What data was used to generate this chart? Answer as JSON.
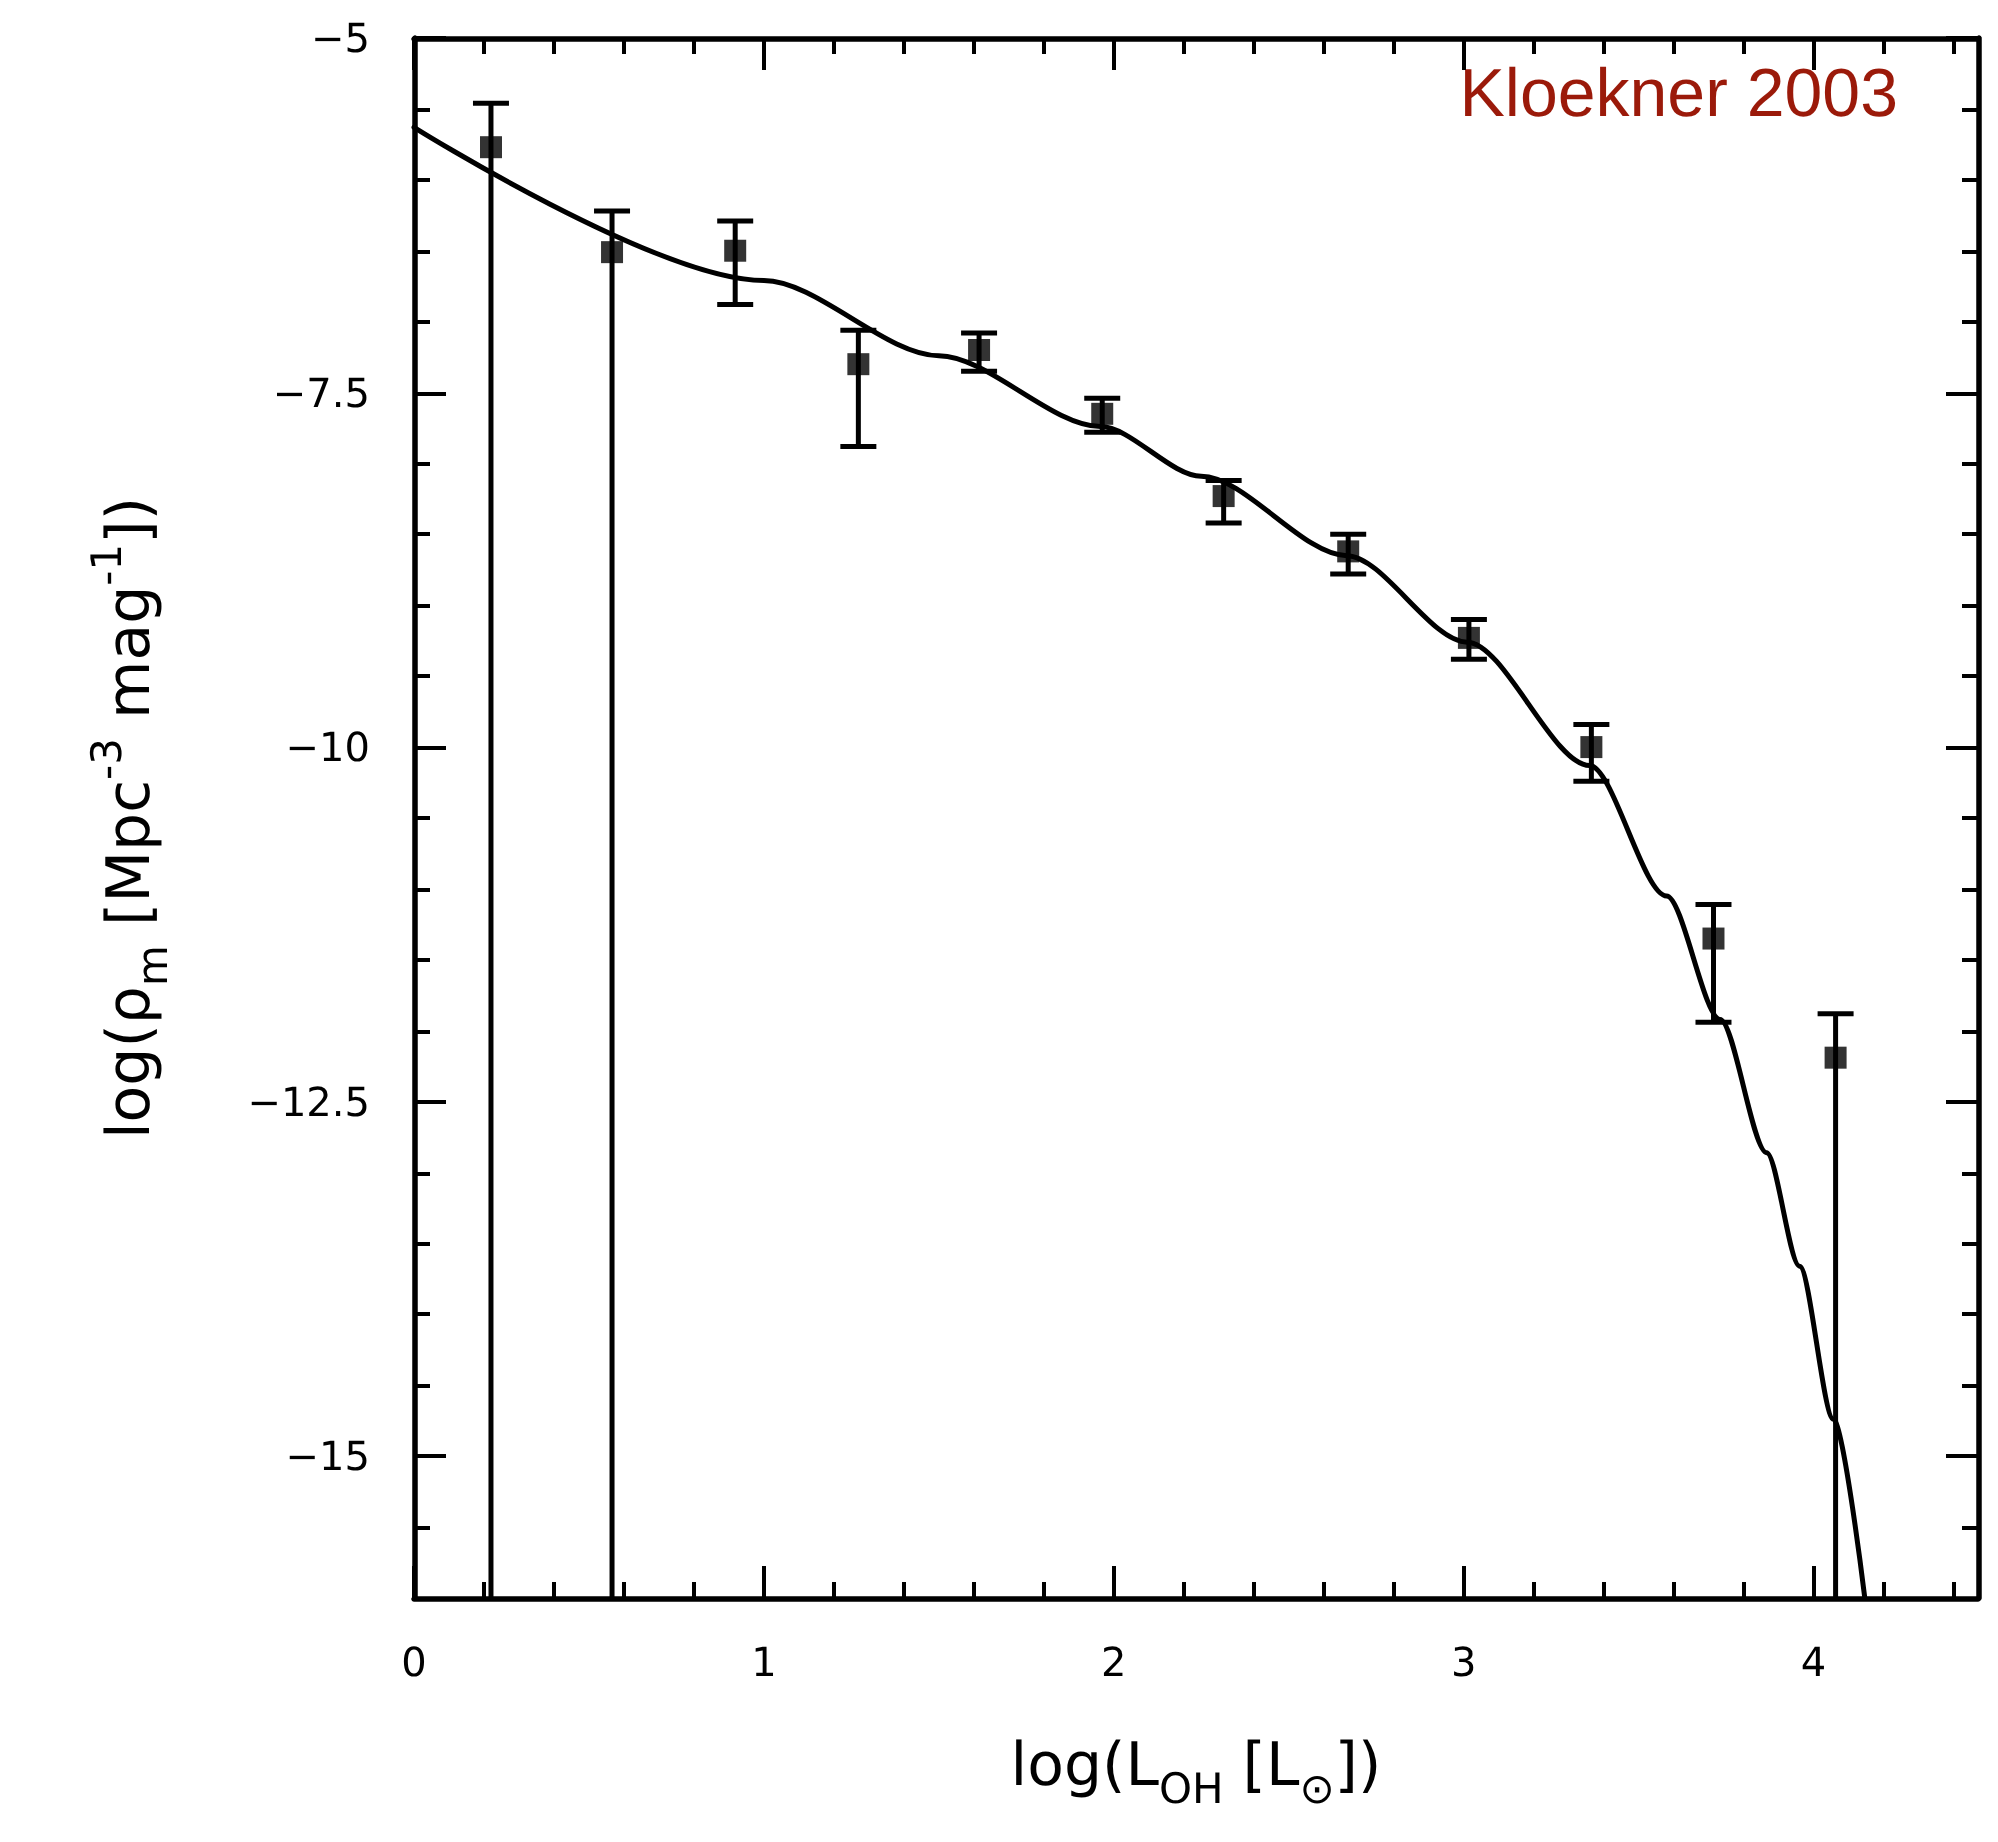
{
  "chart_data": {
    "type": "scatter",
    "xlabel": "log(L$_{OH}$ [L$_{⊙}$])",
    "ylabel": "log(ρ$_{m}$ [Mpc$^{-3}$ mag$^{-1}$])",
    "annotations": [
      "Kloekner 2003"
    ],
    "xlim": [
      0,
      4.47
    ],
    "ylim": [
      -16,
      -5
    ],
    "xticks": [
      0,
      {
        "value": 0.2,
        "label": null
      },
      {
        "value": 0.4,
        "label": null
      },
      {
        "value": 0.6,
        "label": null
      },
      {
        "value": 0.8,
        "label": null
      },
      1,
      {
        "value": 1.2,
        "label": null
      },
      {
        "value": 1.4,
        "label": null
      },
      {
        "value": 1.6,
        "label": null
      },
      {
        "value": 1.8,
        "label": null
      },
      2,
      {
        "value": 2.2,
        "label": null
      },
      {
        "value": 2.4,
        "label": null
      },
      {
        "value": 2.6,
        "label": null
      },
      {
        "value": 2.8,
        "label": null
      },
      3,
      {
        "value": 3.2,
        "label": null
      },
      {
        "value": 3.4,
        "label": null
      },
      {
        "value": 3.6,
        "label": null
      },
      {
        "value": 3.8,
        "label": null
      },
      4,
      {
        "value": 4.2,
        "label": null
      },
      {
        "value": 4.4,
        "label": null
      }
    ],
    "yticks": [
      -5,
      {
        "value": -5.5,
        "label": null
      },
      {
        "value": -6,
        "label": null
      },
      {
        "value": -6.5,
        "label": null
      },
      {
        "value": -7,
        "label": null
      },
      -7.5,
      {
        "value": -8,
        "label": null
      },
      {
        "value": -8.5,
        "label": null
      },
      {
        "value": -9,
        "label": null
      },
      {
        "value": -9.5,
        "label": null
      },
      -10,
      {
        "value": -10.5,
        "label": null
      },
      {
        "value": -11,
        "label": null
      },
      {
        "value": -11.5,
        "label": null
      },
      {
        "value": -12,
        "label": null
      },
      -12.5,
      {
        "value": -13,
        "label": null
      },
      {
        "value": -13.5,
        "label": null
      },
      {
        "value": -14,
        "label": null
      },
      {
        "value": -14.5,
        "label": null
      },
      -15,
      {
        "value": -15.5,
        "label": null
      }
    ],
    "marker": "square",
    "series": [
      {
        "color": "#000000",
        "x": [
          0.22,
          0.566,
          0.918,
          1.27,
          1.615,
          1.967,
          2.314,
          2.67,
          3.015,
          3.365,
          3.714,
          4.063
        ],
        "values": [
          -5.77,
          -6.51,
          -6.5,
          -7.3,
          -7.2,
          -7.65,
          -8.23,
          -8.62,
          -9.23,
          -10.0,
          -11.35,
          -12.19
        ],
        "errors": [
          [
            -16,
            -5.46
          ],
          [
            -16,
            -6.22
          ],
          [
            -6.88,
            -6.29
          ],
          [
            -7.88,
            -7.06
          ],
          [
            -7.35,
            -7.08
          ],
          [
            -7.78,
            -7.54
          ],
          [
            -8.42,
            -8.12
          ],
          [
            -8.78,
            -8.5
          ],
          [
            -9.38,
            -9.1
          ],
          [
            -10.24,
            -9.84
          ],
          [
            -11.94,
            -11.11
          ],
          [
            -16,
            -11.88
          ]
        ]
      },
      {
        "type": "line",
        "color": "#000000",
        "marker": "none",
        "line_style": "solid",
        "x": [
          0,
          1,
          1.5,
          1.962,
          2.25,
          2.666,
          3.01,
          3.36,
          3.58,
          3.733,
          3.866,
          3.96,
          4.057,
          4.146
        ],
        "values": [
          -5.63,
          -6.71,
          -7.24,
          -7.74,
          -8.09,
          -8.65,
          -9.26,
          -10.13,
          -11.05,
          -11.92,
          -12.86,
          -13.66,
          -14.74,
          -15.99
        ]
      }
    ]
  }
}
